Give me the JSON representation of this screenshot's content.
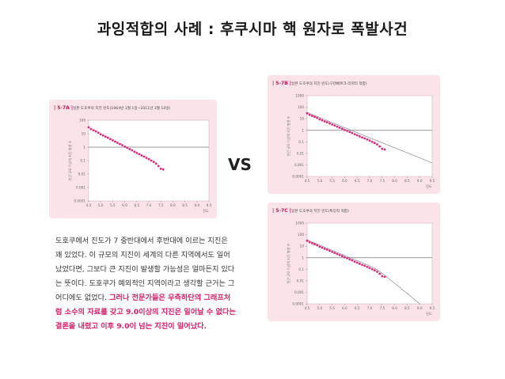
{
  "title": "과잉적합의 사례 : 후쿠시마 핵 원자로 폭발사건",
  "vs": "VS",
  "text": {
    "plain": "도호쿠에서 진도가 7 중반대에서 후반대에 이르는 지진은 꽤 있었다. 이 규모의 지진이 세계의 다른 지역에서도 일어났었다면, 그보다 큰 지진이 발생할 가능성은 얼마든지 있다는 뜻이다. 도호쿠가 예외적인 지역이라고 생각할 근거는 그 어디에도 없었다. ",
    "highlight": "그러나 전문가들은 우측하단의 그래프처럼 소수의 자료를 갖고 9.0이상의 지진은 일어날 수 없다는 결론을 내렸고 이후 9.0이 넘는 지진이 일어났다."
  },
  "chart_data": [
    {
      "id": "5-7A",
      "type": "scatter",
      "label": "| 5-7A |",
      "title": "일본 도호쿠의 지진 빈도(1964년 1월 1일~2011년 3월 10일)",
      "ylabel": "연간 규모 이상의 지진 발생 수",
      "xlabel": "진도",
      "y_log": true,
      "xlim": [
        4.5,
        9.5
      ],
      "ylim": [
        0.0001,
        100
      ],
      "xticks": [
        "4.5",
        "5.0",
        "5.5",
        "6.0",
        "6.5",
        "7.0",
        "7.5",
        "8.0",
        "8.5",
        "9.0",
        "9.5"
      ],
      "yticks": [
        "100",
        "10",
        "1",
        "0.1",
        "0.01",
        "0.001",
        "0.0001"
      ],
      "hline": 1,
      "points": {
        "x": [
          4.5,
          4.6,
          4.7,
          4.8,
          4.9,
          5.0,
          5.1,
          5.2,
          5.3,
          5.4,
          5.5,
          5.6,
          5.7,
          5.8,
          5.9,
          6.0,
          6.1,
          6.2,
          6.3,
          6.4,
          6.5,
          6.6,
          6.7,
          6.8,
          6.9,
          7.0,
          7.1,
          7.2,
          7.3,
          7.4,
          7.5,
          7.6
        ],
        "y": [
          30,
          22,
          18,
          15,
          12,
          9,
          7.5,
          6,
          5,
          4,
          3.2,
          2.6,
          2.1,
          1.7,
          1.4,
          1.1,
          0.9,
          0.72,
          0.58,
          0.46,
          0.37,
          0.3,
          0.24,
          0.2,
          0.16,
          0.13,
          0.1,
          0.08,
          0.06,
          0.04,
          0.025,
          0.022
        ]
      },
      "fit_line": null
    },
    {
      "id": "5-7B",
      "type": "scatter",
      "label": "| 5-7B |",
      "title": "일본 도호쿠의 지진 빈도(구텐베르크-리히터 적합)",
      "ylabel": "연간 규모 이상의 지진 발생 수",
      "xlabel": "진도",
      "y_log": true,
      "xlim": [
        4.5,
        9.5
      ],
      "ylim": [
        0.0001,
        1000
      ],
      "xticks": [
        "4.5",
        "5.0",
        "5.5",
        "6.0",
        "6.5",
        "7.0",
        "7.5",
        "8.0",
        "8.5",
        "9.0",
        "9.5"
      ],
      "yticks": [
        "1000",
        "100",
        "10",
        "1",
        "0.1",
        "0.01",
        "0.001",
        "0.0001"
      ],
      "hline": 1,
      "points": {
        "x": [
          4.5,
          4.6,
          4.7,
          4.8,
          4.9,
          5.0,
          5.1,
          5.2,
          5.3,
          5.4,
          5.5,
          5.6,
          5.7,
          5.8,
          5.9,
          6.0,
          6.1,
          6.2,
          6.3,
          6.4,
          6.5,
          6.6,
          6.7,
          6.8,
          6.9,
          7.0,
          7.1,
          7.2,
          7.3,
          7.4,
          7.5,
          7.6
        ],
        "y": [
          30,
          22,
          18,
          15,
          12,
          9,
          7.5,
          6,
          5,
          4,
          3.2,
          2.6,
          2.1,
          1.7,
          1.4,
          1.1,
          0.9,
          0.72,
          0.58,
          0.46,
          0.37,
          0.3,
          0.24,
          0.2,
          0.16,
          0.13,
          0.1,
          0.08,
          0.06,
          0.04,
          0.025,
          0.022
        ]
      },
      "fit_line": {
        "x": [
          4.5,
          9.5
        ],
        "y": [
          35,
          0.0015
        ]
      }
    },
    {
      "id": "5-7C",
      "type": "scatter",
      "label": "| 5-7C |",
      "title": "일본 도호쿠의 지진 빈도(특징적 적합)",
      "ylabel": "연간 규모 이상의 지진 발생 수",
      "xlabel": "진도",
      "y_log": true,
      "xlim": [
        4.5,
        9.5
      ],
      "ylim": [
        0.0001,
        1000
      ],
      "xticks": [
        "4.5",
        "5.0",
        "5.5",
        "6.0",
        "6.5",
        "7.0",
        "7.5",
        "8.0",
        "8.5",
        "9.0",
        "9.5"
      ],
      "yticks": [
        "1000",
        "100",
        "10",
        "1",
        "0.1",
        "0.01",
        "0.001",
        "0.0001"
      ],
      "hline": 1,
      "points": {
        "x": [
          4.5,
          4.6,
          4.7,
          4.8,
          4.9,
          5.0,
          5.1,
          5.2,
          5.3,
          5.4,
          5.5,
          5.6,
          5.7,
          5.8,
          5.9,
          6.0,
          6.1,
          6.2,
          6.3,
          6.4,
          6.5,
          6.6,
          6.7,
          6.8,
          6.9,
          7.0,
          7.1,
          7.2,
          7.3,
          7.4,
          7.5,
          7.6
        ],
        "y": [
          30,
          22,
          18,
          15,
          12,
          9,
          7.5,
          6,
          5,
          4,
          3.2,
          2.6,
          2.1,
          1.7,
          1.4,
          1.1,
          0.9,
          0.72,
          0.58,
          0.46,
          0.37,
          0.3,
          0.24,
          0.2,
          0.16,
          0.13,
          0.1,
          0.08,
          0.06,
          0.04,
          0.025,
          0.022
        ]
      },
      "fit_line": {
        "x": [
          4.5,
          7.0,
          7.3,
          7.6,
          8.0,
          8.5,
          9.0
        ],
        "y": [
          35,
          0.2,
          0.09,
          0.03,
          0.006,
          0.0008,
          0.0001
        ]
      }
    }
  ]
}
